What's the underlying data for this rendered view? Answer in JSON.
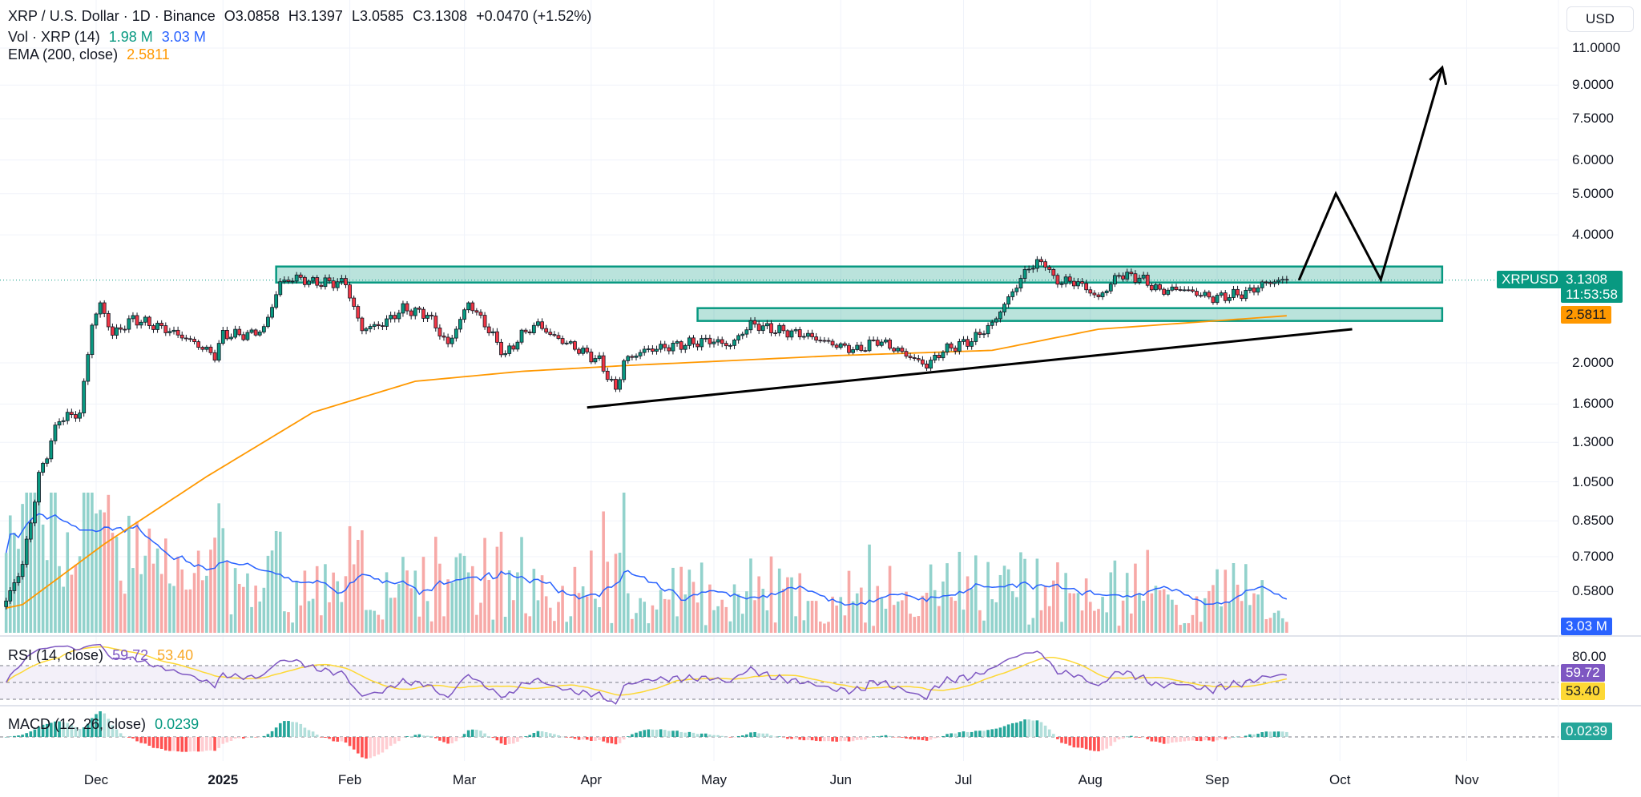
{
  "header": {
    "symbol": "XRP / U.S. Dollar · 1D · Binance",
    "open": "O3.0858",
    "high": "H3.1397",
    "low": "L3.0585",
    "close": "C3.1308",
    "change": "+0.0470 (+1.52%)",
    "vol_label": "Vol · XRP (14)",
    "vol_value": "1.98 M",
    "vol_ma_value": "3.03 M",
    "ema_label": "EMA (200, close)",
    "ema_value": "2.5811",
    "rsi_label": "RSI (14, close)",
    "rsi_value": "59.72",
    "rsi_ma_value": "53.40",
    "macd_label": "MACD (12, 26, close)",
    "macd_value": "0.0239"
  },
  "right_axis": {
    "currency": "USD",
    "symbol_tag": "XRPUSD",
    "last_price": "3.1308",
    "countdown": "11:53:58",
    "ema_tag": "2.5811",
    "vol_tag": "3.03 M",
    "rsi_level": "80.00",
    "rsi_tag": "59.72",
    "rsi_ma_tag": "53.40",
    "macd_tag": "0.0239"
  },
  "colors": {
    "up": "#089981",
    "down": "#f23645",
    "ema": "#ff9800",
    "vol_ma": "#2962ff",
    "rsi": "#7e57c2",
    "rsi_ma": "#fdd835",
    "zone": "#089981"
  },
  "chart_data": {
    "type": "candlestick",
    "title": "XRP / U.S. Dollar · 1D · Binance",
    "y_scale": "log",
    "ylim": [
      0.52,
      12.5
    ],
    "price_ticks": [
      11.0,
      9.0,
      7.5,
      6.0,
      5.0,
      4.0,
      2.0,
      1.6,
      1.3,
      1.05,
      0.85,
      0.7,
      0.58
    ],
    "date_ticks": [
      {
        "label": "Dec",
        "date": "2024-12-01"
      },
      {
        "label": "2025",
        "date": "2025-01-01"
      },
      {
        "label": "Feb",
        "date": "2025-02-01"
      },
      {
        "label": "Mar",
        "date": "2025-03-01"
      },
      {
        "label": "Apr",
        "date": "2025-04-01"
      },
      {
        "label": "May",
        "date": "2025-05-01"
      },
      {
        "label": "Jun",
        "date": "2025-06-01"
      },
      {
        "label": "Jul",
        "date": "2025-07-01"
      },
      {
        "label": "Aug",
        "date": "2025-08-01"
      },
      {
        "label": "Sep",
        "date": "2025-09-01"
      },
      {
        "label": "Oct",
        "date": "2025-10-01"
      },
      {
        "label": "Nov",
        "date": "2025-11-01"
      }
    ],
    "close_path": [
      [
        "2024-11-09",
        0.55
      ],
      [
        "2024-11-13",
        0.67
      ],
      [
        "2024-11-17",
        1.08
      ],
      [
        "2024-11-22",
        1.48
      ],
      [
        "2024-11-27",
        1.52
      ],
      [
        "2024-11-30",
        2.47
      ],
      [
        "2024-12-02",
        2.75
      ],
      [
        "2024-12-05",
        2.33
      ],
      [
        "2024-12-10",
        2.54
      ],
      [
        "2024-12-18",
        2.4
      ],
      [
        "2024-12-24",
        2.26
      ],
      [
        "2024-12-30",
        2.08
      ],
      [
        "2025-01-01",
        2.33
      ],
      [
        "2025-01-07",
        2.33
      ],
      [
        "2025-01-11",
        2.4
      ],
      [
        "2025-01-15",
        3.09
      ],
      [
        "2025-01-19",
        3.17
      ],
      [
        "2025-01-23",
        3.09
      ],
      [
        "2025-01-31",
        3.09
      ],
      [
        "2025-02-02",
        2.68
      ],
      [
        "2025-02-04",
        2.4
      ],
      [
        "2025-02-09",
        2.47
      ],
      [
        "2025-02-14",
        2.68
      ],
      [
        "2025-02-20",
        2.6
      ],
      [
        "2025-02-25",
        2.2
      ],
      [
        "2025-03-02",
        2.77
      ],
      [
        "2025-03-06",
        2.47
      ],
      [
        "2025-03-11",
        2.08
      ],
      [
        "2025-03-15",
        2.33
      ],
      [
        "2025-03-19",
        2.47
      ],
      [
        "2025-03-22",
        2.33
      ],
      [
        "2025-03-27",
        2.2
      ],
      [
        "2025-04-03",
        2.02
      ],
      [
        "2025-04-07",
        1.72
      ],
      [
        "2025-04-09",
        2.02
      ],
      [
        "2025-04-14",
        2.14
      ],
      [
        "2025-04-22",
        2.2
      ],
      [
        "2025-04-30",
        2.26
      ],
      [
        "2025-05-05",
        2.2
      ],
      [
        "2025-05-10",
        2.47
      ],
      [
        "2025-05-15",
        2.4
      ],
      [
        "2025-05-23",
        2.33
      ],
      [
        "2025-05-31",
        2.2
      ],
      [
        "2025-06-05",
        2.14
      ],
      [
        "2025-06-10",
        2.26
      ],
      [
        "2025-06-15",
        2.14
      ],
      [
        "2025-06-22",
        1.97
      ],
      [
        "2025-06-26",
        2.14
      ],
      [
        "2025-07-03",
        2.26
      ],
      [
        "2025-07-08",
        2.47
      ],
      [
        "2025-07-12",
        2.84
      ],
      [
        "2025-07-17",
        3.37
      ],
      [
        "2025-07-21",
        3.46
      ],
      [
        "2025-07-23",
        3.13
      ],
      [
        "2025-07-29",
        3.09
      ],
      [
        "2025-08-03",
        2.84
      ],
      [
        "2025-08-08",
        3.23
      ],
      [
        "2025-08-13",
        3.17
      ],
      [
        "2025-08-18",
        2.95
      ],
      [
        "2025-08-23",
        2.99
      ],
      [
        "2025-08-31",
        2.84
      ],
      [
        "2025-09-08",
        2.92
      ],
      [
        "2025-09-13",
        3.09
      ],
      [
        "2025-09-18",
        3.1308
      ]
    ],
    "ema200_path": [
      [
        "2024-11-09",
        0.53
      ],
      [
        "2024-11-13",
        0.54
      ],
      [
        "2024-12-03",
        0.75
      ],
      [
        "2024-12-28",
        1.08
      ],
      [
        "2025-01-23",
        1.53
      ],
      [
        "2025-02-17",
        1.81
      ],
      [
        "2025-03-15",
        1.91
      ],
      [
        "2025-04-09",
        1.97
      ],
      [
        "2025-05-31",
        2.08
      ],
      [
        "2025-07-08",
        2.14
      ],
      [
        "2025-08-03",
        2.4
      ],
      [
        "2025-09-18",
        2.5811
      ]
    ],
    "zones": [
      {
        "name": "upper-resistance-zone",
        "from": "2025-01-14",
        "to": "2025-10-26",
        "top": 3.37,
        "bottom": 3.09
      },
      {
        "name": "lower-support-zone",
        "from": "2025-04-27",
        "to": "2025-10-26",
        "top": 2.69,
        "bottom": 2.51
      }
    ],
    "trendline": [
      [
        "2025-03-31",
        1.57
      ],
      [
        "2025-10-04",
        2.4
      ]
    ],
    "projection": [
      [
        "2025-09-21",
        3.13
      ],
      [
        "2025-09-30",
        5.0
      ],
      [
        "2025-10-11",
        3.14
      ],
      [
        "2025-10-26",
        9.9
      ]
    ],
    "rsi_levels": [
      70,
      50,
      30
    ]
  }
}
